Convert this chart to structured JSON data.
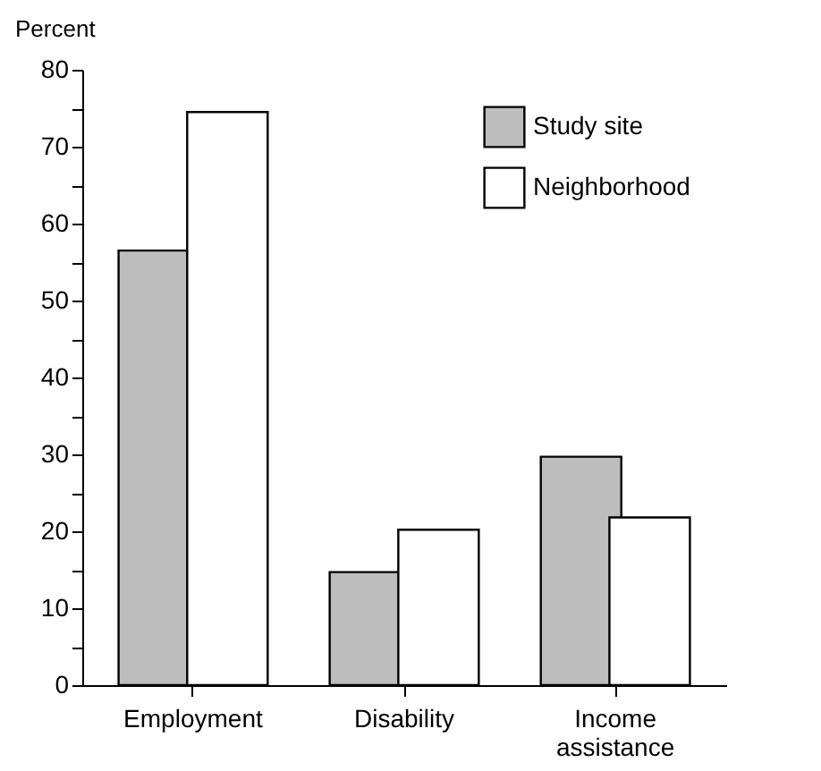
{
  "chart_data": {
    "type": "bar",
    "ylabel": "Percent",
    "categories": [
      "Employment",
      "Disability",
      "Income assistance"
    ],
    "series": [
      {
        "name": "Study site",
        "color": "#bdbdbd",
        "values": [
          56.5,
          14.7,
          29.7
        ]
      },
      {
        "name": "Neighborhood",
        "color": "#ffffff",
        "values": [
          74.5,
          20.2,
          21.8
        ]
      }
    ],
    "ylim": [
      0,
      80
    ],
    "yticks": [
      0,
      {
        "value": 5,
        "label": null
      },
      10,
      {
        "value": 15,
        "label": null
      },
      20,
      {
        "value": 25,
        "label": null
      },
      30,
      {
        "value": 35,
        "label": null
      },
      40,
      {
        "value": 45,
        "label": null
      },
      50,
      {
        "value": 55,
        "label": null
      },
      60,
      {
        "value": 65,
        "label": null
      },
      70,
      {
        "value": 75,
        "label": null
      },
      80
    ],
    "legend": "top right",
    "grid": false
  }
}
